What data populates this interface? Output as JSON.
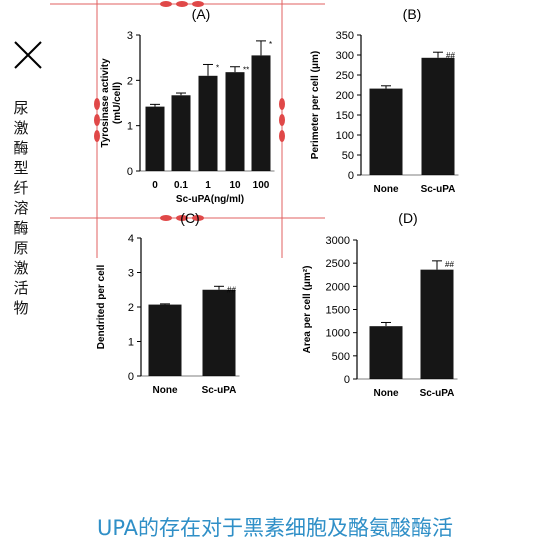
{
  "side_text": "尿激酶型纤溶酶原激活物",
  "caption": "UPA的存在对于黑素细胞及酪氨酸酶活",
  "chart_data": [
    {
      "type": "bar",
      "panel_label": "(A)",
      "categories": [
        "0",
        "0.1",
        "1",
        "10",
        "100"
      ],
      "values": [
        1.42,
        1.67,
        2.1,
        2.18,
        2.55
      ],
      "errors": [
        0.05,
        0.05,
        0.25,
        0.12,
        0.32
      ],
      "markers": [
        "",
        "",
        "*",
        "**",
        "*"
      ],
      "ylabel": "Tyrosinase activity\n(mU/cell)",
      "xlabel": "Sc-uPA(ng/ml)",
      "ylim": [
        0,
        3
      ],
      "yticks": [
        "0",
        "1",
        "2",
        "3"
      ]
    },
    {
      "type": "bar",
      "panel_label": "(B)",
      "categories": [
        "None",
        "Sc-uPA"
      ],
      "values": [
        216,
        293
      ],
      "errors": [
        7,
        14
      ],
      "markers": [
        "",
        "##"
      ],
      "ylabel": "Perimeter per cell (μm)",
      "xlabel": "",
      "ylim": [
        0,
        350
      ],
      "yticks": [
        "0",
        "50",
        "100",
        "150",
        "200",
        "250",
        "300",
        "350"
      ]
    },
    {
      "type": "bar",
      "panel_label": "(C)",
      "categories": [
        "None",
        "Sc-uPA"
      ],
      "values": [
        2.07,
        2.5
      ],
      "errors": [
        0.02,
        0.1
      ],
      "markers": [
        "",
        "##"
      ],
      "ylabel": "Dendrited per cell",
      "xlabel": "",
      "ylim": [
        0,
        4
      ],
      "yticks": [
        "0",
        "1",
        "2",
        "3",
        "4"
      ]
    },
    {
      "type": "bar",
      "panel_label": "(D)",
      "categories": [
        "None",
        "Sc-uPA"
      ],
      "values": [
        1140,
        2360
      ],
      "errors": [
        80,
        190
      ],
      "markers": [
        "",
        "##"
      ],
      "ylabel": "Area per cell (μm²)",
      "xlabel": "",
      "ylim": [
        0,
        3000
      ],
      "yticks": [
        "0",
        "500",
        "1000",
        "1500",
        "2000",
        "2500",
        "3000"
      ]
    }
  ]
}
